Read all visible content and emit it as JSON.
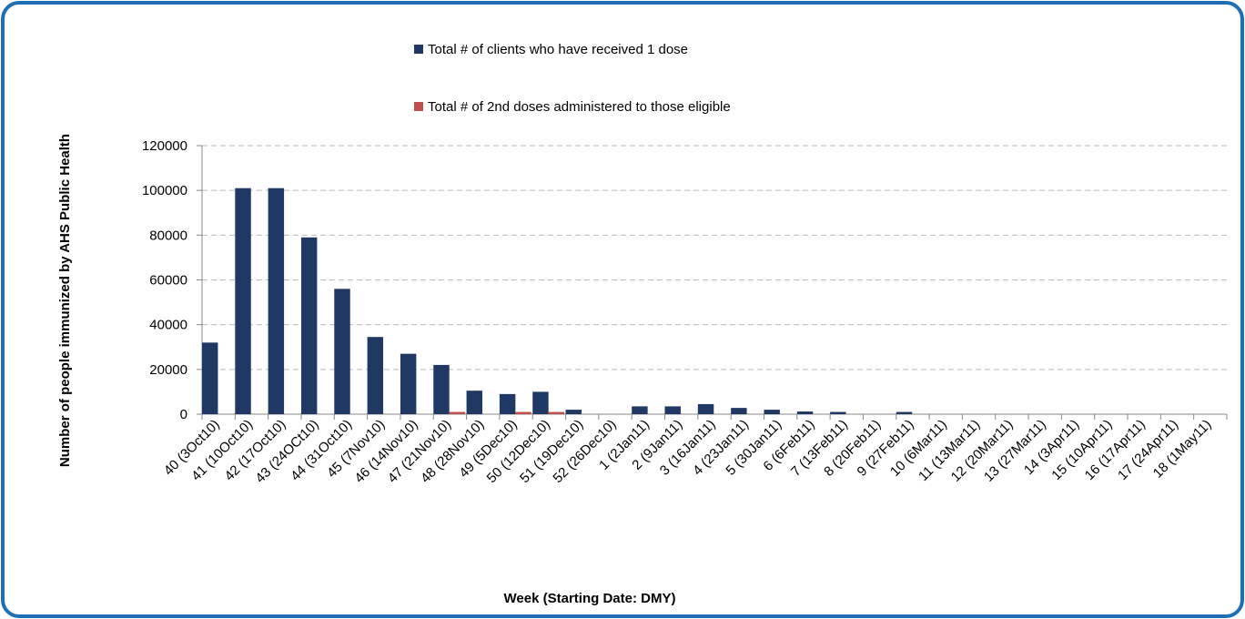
{
  "chart_data": {
    "type": "bar",
    "x_label": "Week (Starting Date: DMY)",
    "y_label": "Number of people immunized by AHS Public Health",
    "categories": [
      "40 (3Oct10)",
      "41 (10Oct10)",
      "42 (17Oct10)",
      "43 (24OCt10)",
      "44 (31Oct10)",
      "45 (7Nov10)",
      "46 (14Nov10)",
      "47 (21Nov10)",
      "48 (28Nov10)",
      "49 (5Dec10)",
      "50 (12Dec10)",
      "51 (19Dec10)",
      "52 (26Dec10)",
      "1 (2Jan11)",
      "2 (9Jan11)",
      "3 (16Jan11)",
      "4 (23Jan11)",
      "5 (30Jan11)",
      "6 (6Feb11)",
      "7 (13Feb11)",
      "8 (20Feb11)",
      "9 (27Feb11)",
      "10 (6Mar11)",
      "11 (13Mar11)",
      "12 (20Mar11)",
      "13 (27Mar11)",
      "14 (3Apr11)",
      "15 (10Apr11)",
      "16 (17Apr11)",
      "17 (24Apr11)",
      "18 (1May11)"
    ],
    "series": [
      {
        "name": "Total # of clients who have received 1 dose",
        "color": "#1f3864",
        "values": [
          32000,
          101000,
          101000,
          79000,
          56000,
          34500,
          27000,
          22000,
          10500,
          9000,
          10000,
          2000,
          0,
          3500,
          3500,
          4500,
          2800,
          2000,
          1200,
          1000,
          0,
          1000,
          0,
          0,
          0,
          0,
          0,
          0,
          0,
          0,
          0
        ]
      },
      {
        "name": "Total # of 2nd doses administered to those eligible",
        "color": "#c0504d",
        "values": [
          0,
          0,
          0,
          0,
          0,
          0,
          0,
          1000,
          0,
          1000,
          1000,
          0,
          0,
          0,
          0,
          0,
          0,
          0,
          0,
          0,
          0,
          0,
          0,
          0,
          0,
          0,
          0,
          0,
          0,
          0,
          0
        ]
      }
    ],
    "ylim": [
      0,
      120000
    ],
    "yticks": [
      0,
      20000,
      40000,
      60000,
      80000,
      100000,
      120000
    ],
    "grid": true
  }
}
